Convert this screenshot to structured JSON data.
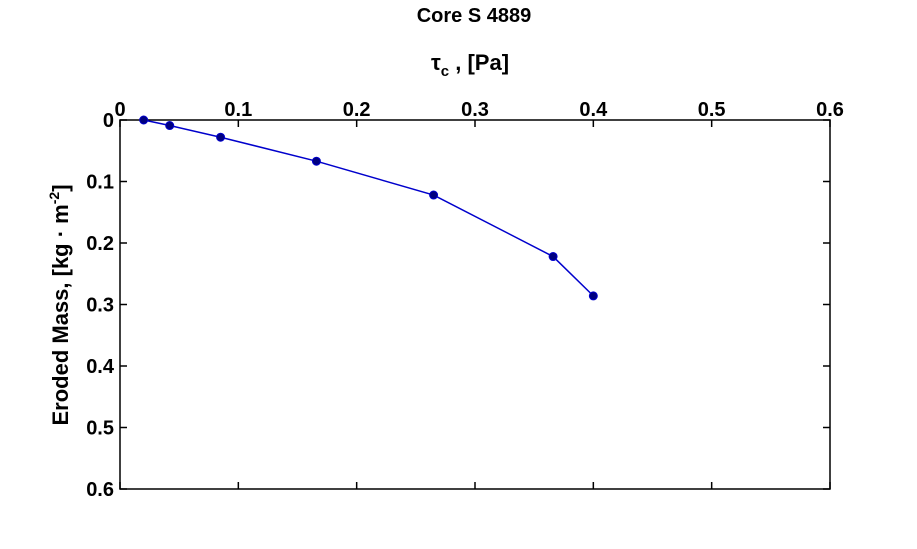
{
  "chart_data": {
    "type": "line",
    "title": "Core S 4889",
    "xlabel": {
      "main": "τ",
      "subscript": "c",
      "rest": " , [Pa]"
    },
    "ylabel": {
      "main": "Eroded Mass, [kg · m",
      "superscript": "-2",
      "rest": "]"
    },
    "x_axis_position": "top",
    "y_reversed": true,
    "xlim": [
      0,
      0.6
    ],
    "ylim": [
      0,
      0.6
    ],
    "xticks": [
      "0",
      "0.1",
      "0.2",
      "0.3",
      "0.4",
      "0.5",
      "0.6"
    ],
    "yticks": [
      "0",
      "0.1",
      "0.2",
      "0.3",
      "0.4",
      "0.5",
      "0.6"
    ],
    "grid": false,
    "series": [
      {
        "color": "#0000cc",
        "marker": "circle",
        "x": [
          0.02,
          0.042,
          0.085,
          0.166,
          0.265,
          0.366,
          0.4
        ],
        "y": [
          0.0,
          0.009,
          0.028,
          0.067,
          0.122,
          0.222,
          0.286
        ]
      }
    ]
  }
}
